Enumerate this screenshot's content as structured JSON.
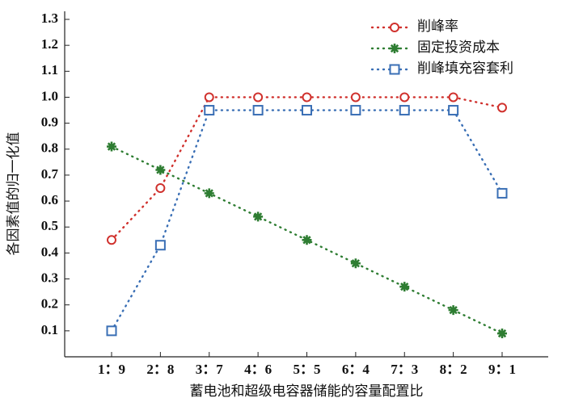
{
  "chart_data": {
    "type": "line",
    "y_label": "各因素值的归一化值",
    "x_label": "蓄电池和超级电容器储能的容量配置比",
    "categories": [
      "1：9",
      "2：8",
      "3：7",
      "4：6",
      "5：5",
      "6：4",
      "7：3",
      "8：2",
      "9：1"
    ],
    "series": [
      {
        "name": "削峰率",
        "color": "#d0312d",
        "marker": "circle",
        "values": [
          0.45,
          0.65,
          1.0,
          1.0,
          1.0,
          1.0,
          1.0,
          1.0,
          0.96
        ]
      },
      {
        "name": "固定投资成本",
        "color": "#2e7d32",
        "marker": "star",
        "values": [
          0.81,
          0.72,
          0.63,
          0.54,
          0.45,
          0.36,
          0.27,
          0.18,
          0.09
        ]
      },
      {
        "name": "削峰填充容套利",
        "color": "#3a6fb5",
        "marker": "square",
        "values": [
          0.1,
          0.43,
          0.95,
          0.95,
          0.95,
          0.95,
          0.95,
          0.95,
          0.63
        ]
      }
    ],
    "ylim": [
      0,
      1.3
    ],
    "yticks": [
      0.1,
      0.2,
      0.3,
      0.4,
      0.5,
      0.6,
      0.7,
      0.8,
      0.9,
      {
        "value": 1,
        "label": "1.0"
      },
      1.1,
      1.2,
      1.3
    ],
    "legend": "upper right"
  }
}
